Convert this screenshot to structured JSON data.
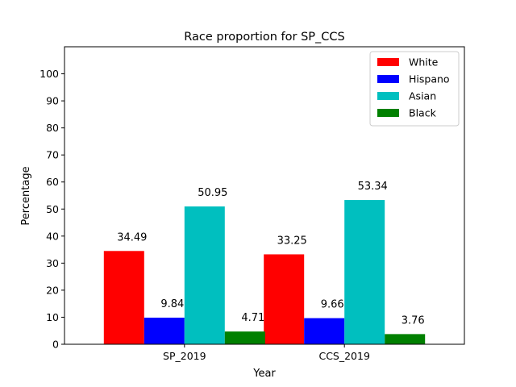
{
  "chart_data": {
    "type": "bar",
    "title": "Race proportion for SP_CCS",
    "xlabel": "Year",
    "ylabel": "Percentage",
    "categories": [
      "SP_2019",
      "CCS_2019"
    ],
    "ylim": [
      0,
      110
    ],
    "yticks": [
      0,
      10,
      20,
      30,
      40,
      50,
      60,
      70,
      80,
      90,
      100
    ],
    "grid": false,
    "legend_position": "top-right",
    "series": [
      {
        "name": "White",
        "color": "#ff0000",
        "values": [
          34.49,
          33.25
        ],
        "labels": [
          "34.49",
          "33.25"
        ]
      },
      {
        "name": "Hispano",
        "color": "#0000ff",
        "values": [
          9.84,
          9.66
        ],
        "labels": [
          "9.84",
          "9.66"
        ]
      },
      {
        "name": "Asian",
        "color": "#00bfbf",
        "values": [
          50.95,
          53.34
        ],
        "labels": [
          "50.95",
          "53.34"
        ]
      },
      {
        "name": "Black",
        "color": "#008000",
        "values": [
          4.71,
          3.76
        ],
        "labels": [
          "4.71",
          "3.76"
        ]
      }
    ]
  }
}
